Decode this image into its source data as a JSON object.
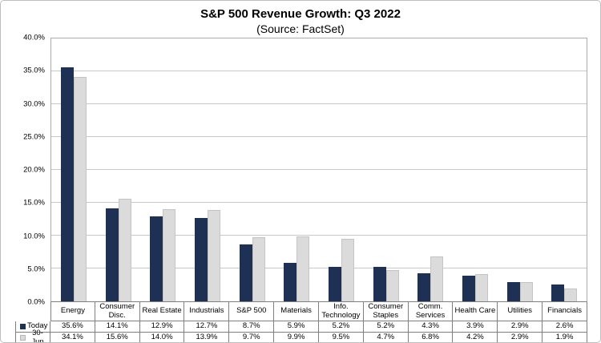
{
  "title": "S&P 500 Revenue Growth: Q3 2022",
  "subtitle": "(Source: FactSet)",
  "colors": {
    "today_bar": "#1F3055",
    "jun_bar": "#DBDBDB",
    "gridline": "#C9C9C9",
    "table_border": "#7F7F7F"
  },
  "chart_data": {
    "type": "bar",
    "title": "S&P 500 Revenue Growth: Q3 2022",
    "subtitle": "(Source: FactSet)",
    "categories": [
      "Energy",
      "Consumer Disc.",
      "Real Estate",
      "Industrials",
      "S&P 500",
      "Materials",
      "Info. Technology",
      "Consumer Staples",
      "Comm. Services",
      "Health Care",
      "Utilities",
      "Financials"
    ],
    "series": [
      {
        "name": "Today",
        "values": [
          35.6,
          14.1,
          12.9,
          12.7,
          8.7,
          5.9,
          5.2,
          5.2,
          4.3,
          3.9,
          2.9,
          2.6
        ]
      },
      {
        "name": "30-Jun",
        "values": [
          34.1,
          15.6,
          14.0,
          13.9,
          9.7,
          9.9,
          9.5,
          4.7,
          6.8,
          4.2,
          2.9,
          1.9
        ]
      }
    ],
    "ylim": [
      0,
      40
    ],
    "ytick_step": 5,
    "ytick_suffix": "%",
    "grid": true,
    "legend_position": "table-left",
    "value_suffix": "%"
  }
}
